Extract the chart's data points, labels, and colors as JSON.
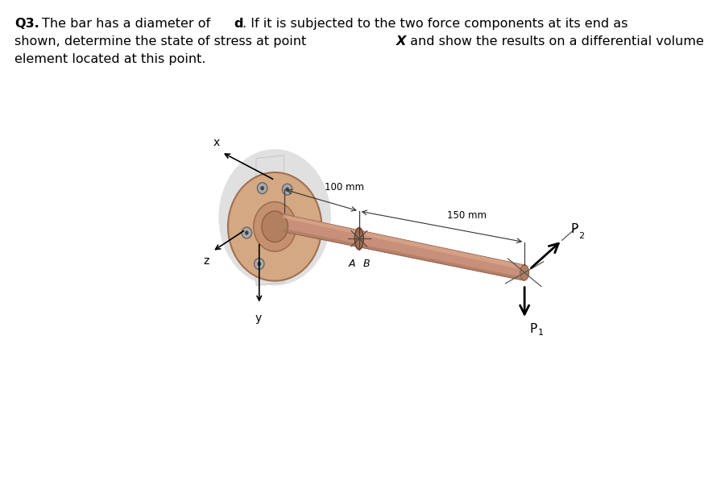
{
  "bg_color": "#ffffff",
  "flange_color": "#d4a882",
  "flange_edge_color": "#a07050",
  "flange_shadow_color": "#cccccc",
  "bar_color_main": "#c8907a",
  "bar_color_top": "#deb898",
  "bar_color_bottom": "#b07060",
  "bar_edge_color": "#906050",
  "hub_color": "#c09070",
  "hub_dark": "#a07050",
  "bolt_face": "#999999",
  "bolt_edge": "#555555",
  "dim_line_color": "#222222",
  "text_color": "#111111",
  "label_100mm": "100 mm",
  "label_150mm": "150 mm",
  "label_A": "A",
  "label_B": "B",
  "label_x": "x",
  "label_y": "y",
  "label_z": "z"
}
